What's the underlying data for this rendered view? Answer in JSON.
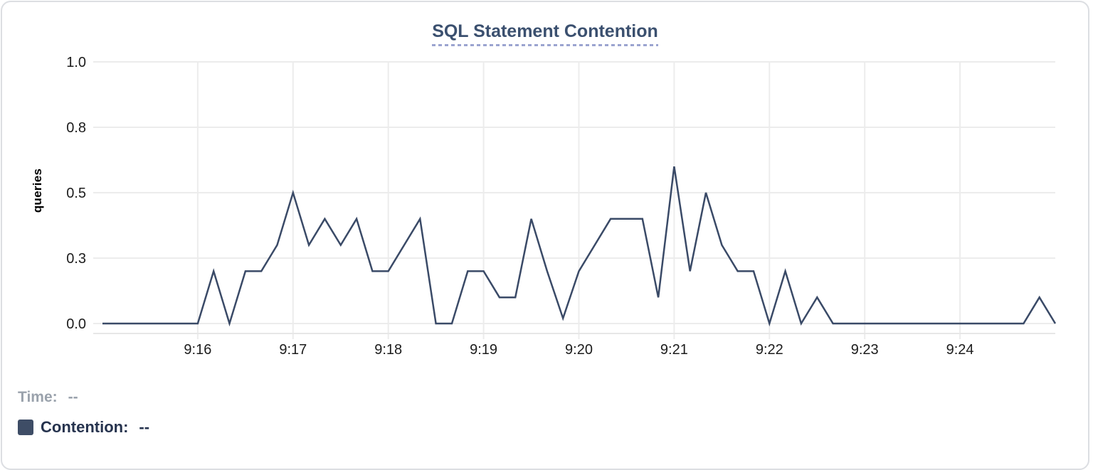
{
  "title": "SQL Statement Contention",
  "chart_data": {
    "type": "line",
    "title": "SQL Statement Contention",
    "xlabel": "",
    "ylabel": "queries",
    "ylim": [
      0,
      1.0
    ],
    "grid": true,
    "legend_position": "bottom-left",
    "x_start_time": "9:15:00",
    "sample_interval_seconds": 10,
    "x_ticks": [
      {
        "minute": 1,
        "label": "9:16"
      },
      {
        "minute": 2,
        "label": "9:17"
      },
      {
        "minute": 3,
        "label": "9:18"
      },
      {
        "minute": 4,
        "label": "9:19"
      },
      {
        "minute": 5,
        "label": "9:20"
      },
      {
        "minute": 6,
        "label": "9:21"
      },
      {
        "minute": 7,
        "label": "9:22"
      },
      {
        "minute": 8,
        "label": "9:23"
      },
      {
        "minute": 9,
        "label": "9:24"
      }
    ],
    "y_ticks": [
      {
        "value": 0.0,
        "label": "0.0"
      },
      {
        "value": 0.25,
        "label": "0.3"
      },
      {
        "value": 0.5,
        "label": "0.5"
      },
      {
        "value": 0.75,
        "label": "0.8"
      },
      {
        "value": 1.0,
        "label": "1.0"
      }
    ],
    "series": [
      {
        "name": "Contention",
        "color": "#3a4a67",
        "values": [
          0,
          0,
          0,
          0,
          0,
          0,
          0,
          0.2,
          0,
          0.2,
          0.2,
          0.3,
          0.5,
          0.3,
          0.4,
          0.3,
          0.4,
          0.2,
          0.2,
          0.3,
          0.4,
          0,
          0,
          0.2,
          0.2,
          0.1,
          0.1,
          0.4,
          0.2,
          0.02,
          0.2,
          0.3,
          0.4,
          0.4,
          0.4,
          0.1,
          0.6,
          0.2,
          0.5,
          0.3,
          0.2,
          0.2,
          0,
          0.2,
          0,
          0.1,
          0,
          0,
          0,
          0,
          0,
          0,
          0,
          0,
          0,
          0,
          0,
          0,
          0,
          0.1,
          0
        ]
      }
    ]
  },
  "hover_readout": {
    "time_label": "Time:",
    "time_value": "--",
    "series_label": "Contention:",
    "series_value": "--",
    "swatch_color": "#3e4d66"
  },
  "colors": {
    "title_text": "#3b506f",
    "title_underline": "#9ba4d0",
    "gridline": "#ececec",
    "axis_line": "#e7e7e7",
    "tick_stub": "#dcdcdc",
    "axis_text": "#1c1c1c",
    "muted_text": "#9aa2ac",
    "legend_text": "#26334e",
    "line": "#3a4a67"
  }
}
